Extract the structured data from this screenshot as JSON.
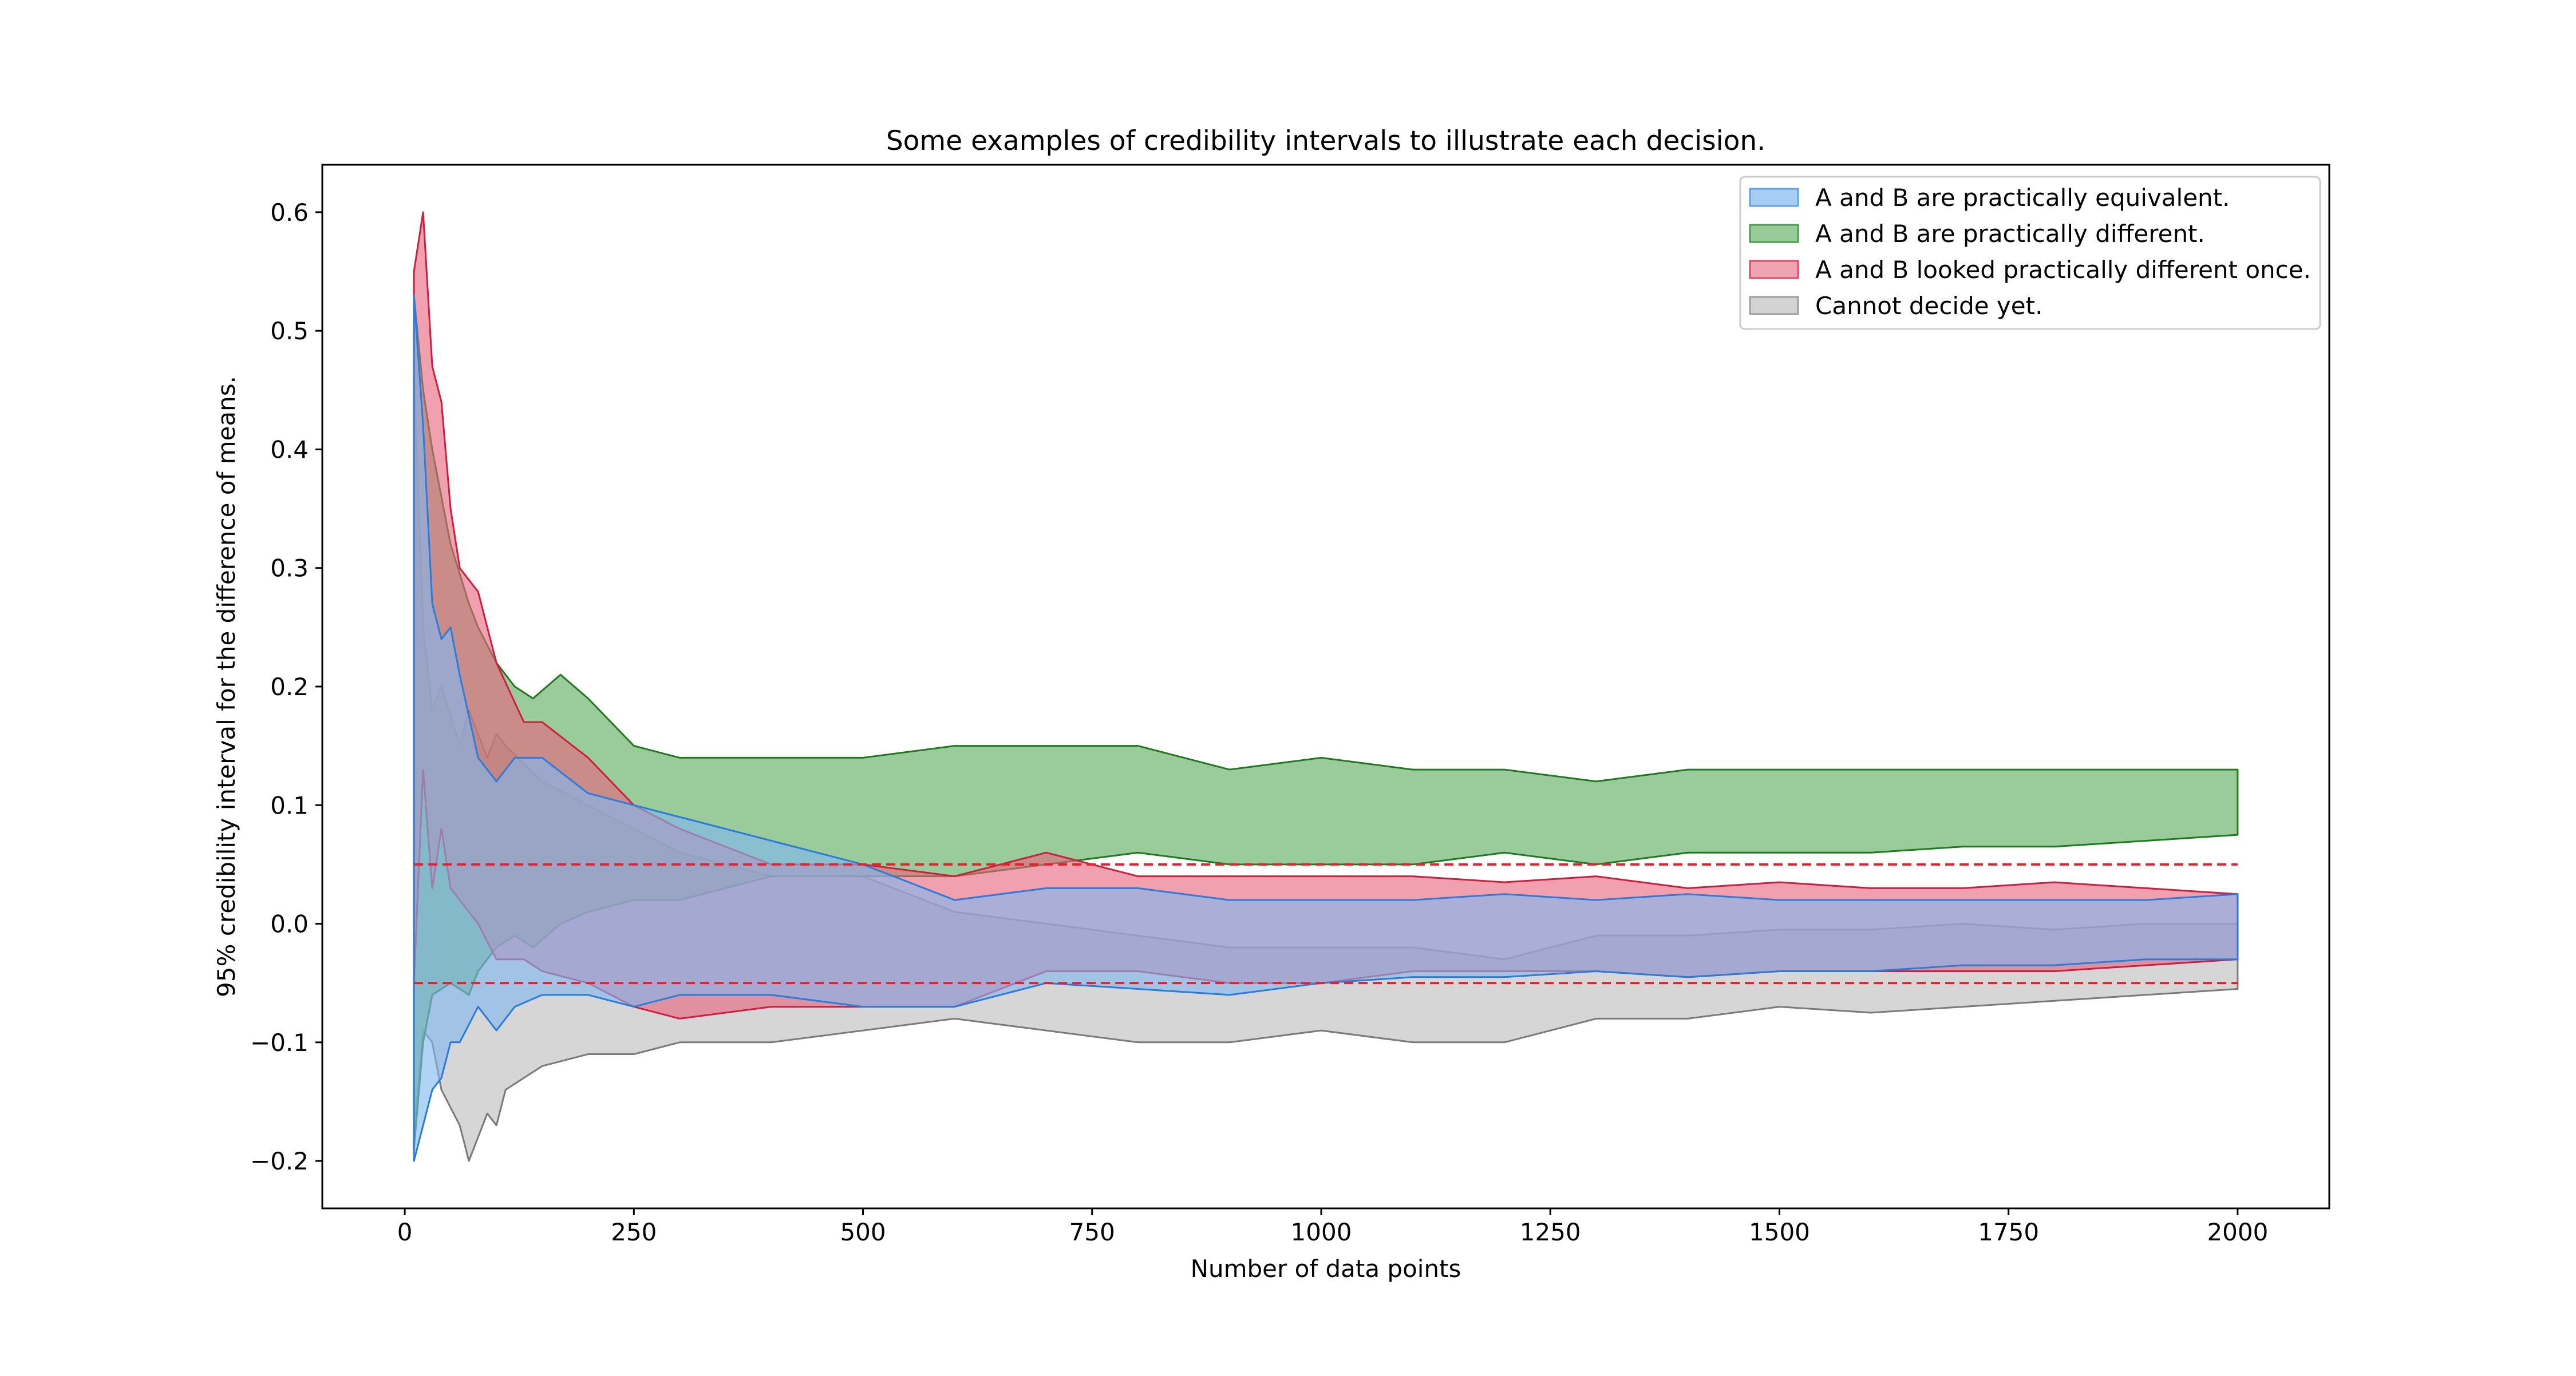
{
  "chart_data": {
    "type": "area",
    "title": "Some examples of credibility intervals to illustrate each decision.",
    "xlabel": "Number of data points",
    "ylabel": "95% credibility interval for the difference of means.",
    "xlim": [
      -90,
      2100
    ],
    "ylim": [
      -0.24,
      0.64
    ],
    "xticks": [
      0,
      250,
      500,
      750,
      1000,
      1250,
      1500,
      1750,
      2000
    ],
    "yticks": [
      -0.2,
      -0.1,
      0.0,
      0.1,
      0.2,
      0.3,
      0.4,
      0.5,
      0.6
    ],
    "ytick_labels": [
      "−0.2",
      "−0.1",
      "0.0",
      "0.1",
      "0.2",
      "0.3",
      "0.4",
      "0.5",
      "0.6"
    ],
    "grid": false,
    "legend_position": "top-right",
    "reference_lines": [
      {
        "y": 0.05,
        "color": "#e8202a",
        "style": "dashed",
        "x_range": [
          10,
          2000
        ]
      },
      {
        "y": -0.05,
        "color": "#e8202a",
        "style": "dashed",
        "x_range": [
          10,
          2000
        ]
      }
    ],
    "series": [
      {
        "name": "Cannot decide yet.",
        "fill": "#bdbdbd",
        "edge": "#7a7a7a",
        "x": [
          10,
          20,
          30,
          40,
          60,
          70,
          90,
          100,
          110,
          150,
          200,
          250,
          300,
          400,
          500,
          600,
          700,
          800,
          900,
          1000,
          1100,
          1200,
          1300,
          1400,
          1500,
          1600,
          1700,
          1800,
          1900,
          2000
        ],
        "upper": [
          0.46,
          0.25,
          0.18,
          0.2,
          0.15,
          0.18,
          0.14,
          0.16,
          0.15,
          0.12,
          0.1,
          0.08,
          0.06,
          0.04,
          0.04,
          0.01,
          0.0,
          -0.01,
          -0.02,
          -0.02,
          -0.02,
          -0.03,
          -0.01,
          -0.01,
          -0.005,
          -0.005,
          0.0,
          -0.005,
          0.0,
          0.0
        ],
        "lower": [
          -0.18,
          -0.09,
          -0.1,
          -0.14,
          -0.17,
          -0.2,
          -0.16,
          -0.17,
          -0.14,
          -0.12,
          -0.11,
          -0.11,
          -0.1,
          -0.1,
          -0.09,
          -0.08,
          -0.09,
          -0.1,
          -0.1,
          -0.09,
          -0.1,
          -0.1,
          -0.08,
          -0.08,
          -0.07,
          -0.075,
          -0.07,
          -0.065,
          -0.06,
          -0.055
        ]
      },
      {
        "name": "A and B are practically different.",
        "fill": "#5cab5c",
        "edge": "#1f7a1f",
        "x": [
          10,
          20,
          30,
          50,
          70,
          80,
          100,
          120,
          140,
          170,
          200,
          250,
          300,
          400,
          500,
          600,
          700,
          800,
          900,
          1000,
          1100,
          1200,
          1300,
          1400,
          1500,
          1600,
          1700,
          1800,
          1900,
          2000
        ],
        "upper": [
          0.53,
          0.45,
          0.4,
          0.32,
          0.27,
          0.25,
          0.22,
          0.2,
          0.19,
          0.21,
          0.19,
          0.15,
          0.14,
          0.14,
          0.14,
          0.15,
          0.15,
          0.15,
          0.13,
          0.14,
          0.13,
          0.13,
          0.12,
          0.13,
          0.13,
          0.13,
          0.13,
          0.13,
          0.13,
          0.13
        ],
        "lower": [
          -0.19,
          -0.1,
          -0.06,
          -0.05,
          -0.06,
          -0.04,
          -0.02,
          -0.01,
          -0.02,
          0.0,
          0.01,
          0.02,
          0.02,
          0.04,
          0.04,
          0.04,
          0.05,
          0.06,
          0.05,
          0.05,
          0.05,
          0.06,
          0.05,
          0.06,
          0.06,
          0.06,
          0.065,
          0.065,
          0.07,
          0.075
        ]
      },
      {
        "name": "A and B looked practically different once.",
        "fill": "#e8667e",
        "edge": "#cc1f3e",
        "x": [
          10,
          20,
          30,
          40,
          50,
          60,
          80,
          100,
          130,
          150,
          200,
          250,
          300,
          400,
          500,
          600,
          700,
          800,
          900,
          1000,
          1100,
          1200,
          1300,
          1400,
          1500,
          1600,
          1700,
          1800,
          1900,
          2000
        ],
        "upper": [
          0.55,
          0.6,
          0.47,
          0.44,
          0.35,
          0.3,
          0.28,
          0.22,
          0.17,
          0.17,
          0.14,
          0.1,
          0.08,
          0.05,
          0.05,
          0.04,
          0.06,
          0.04,
          0.04,
          0.04,
          0.04,
          0.035,
          0.04,
          0.03,
          0.035,
          0.03,
          0.03,
          0.035,
          0.03,
          0.025
        ],
        "lower": [
          -0.05,
          0.13,
          0.03,
          0.08,
          0.03,
          0.02,
          0.0,
          -0.03,
          -0.03,
          -0.04,
          -0.05,
          -0.07,
          -0.08,
          -0.07,
          -0.07,
          -0.07,
          -0.04,
          -0.04,
          -0.05,
          -0.05,
          -0.04,
          -0.04,
          -0.04,
          -0.045,
          -0.04,
          -0.04,
          -0.04,
          -0.04,
          -0.035,
          -0.03
        ]
      },
      {
        "name": "A and B are practically equivalent.",
        "fill": "#7fb8f0",
        "edge": "#2b7bd8",
        "x": [
          10,
          20,
          30,
          40,
          50,
          60,
          80,
          100,
          120,
          150,
          200,
          250,
          300,
          400,
          500,
          600,
          700,
          800,
          900,
          1000,
          1100,
          1200,
          1300,
          1400,
          1500,
          1600,
          1700,
          1800,
          1900,
          2000
        ],
        "upper": [
          0.53,
          0.42,
          0.27,
          0.24,
          0.25,
          0.21,
          0.14,
          0.12,
          0.14,
          0.14,
          0.11,
          0.1,
          0.09,
          0.07,
          0.05,
          0.02,
          0.03,
          0.03,
          0.02,
          0.02,
          0.02,
          0.025,
          0.02,
          0.025,
          0.02,
          0.02,
          0.02,
          0.02,
          0.02,
          0.025
        ],
        "lower": [
          -0.2,
          -0.17,
          -0.14,
          -0.13,
          -0.1,
          -0.1,
          -0.07,
          -0.09,
          -0.07,
          -0.06,
          -0.06,
          -0.07,
          -0.06,
          -0.06,
          -0.07,
          -0.07,
          -0.05,
          -0.055,
          -0.06,
          -0.05,
          -0.045,
          -0.045,
          -0.04,
          -0.045,
          -0.04,
          -0.04,
          -0.035,
          -0.035,
          -0.03,
          -0.03
        ]
      }
    ],
    "legend": [
      {
        "label": "A and B are practically equivalent.",
        "fill": "#a6cdf4",
        "edge": "#5fa1e6"
      },
      {
        "label": "A and B are practically different.",
        "fill": "#98cc98",
        "edge": "#4c9a4c"
      },
      {
        "label": "A and B looked practically different once.",
        "fill": "#f0a3b0",
        "edge": "#d94a66"
      },
      {
        "label": "Cannot decide yet.",
        "fill": "#d3d3d3",
        "edge": "#9e9e9e"
      }
    ]
  }
}
